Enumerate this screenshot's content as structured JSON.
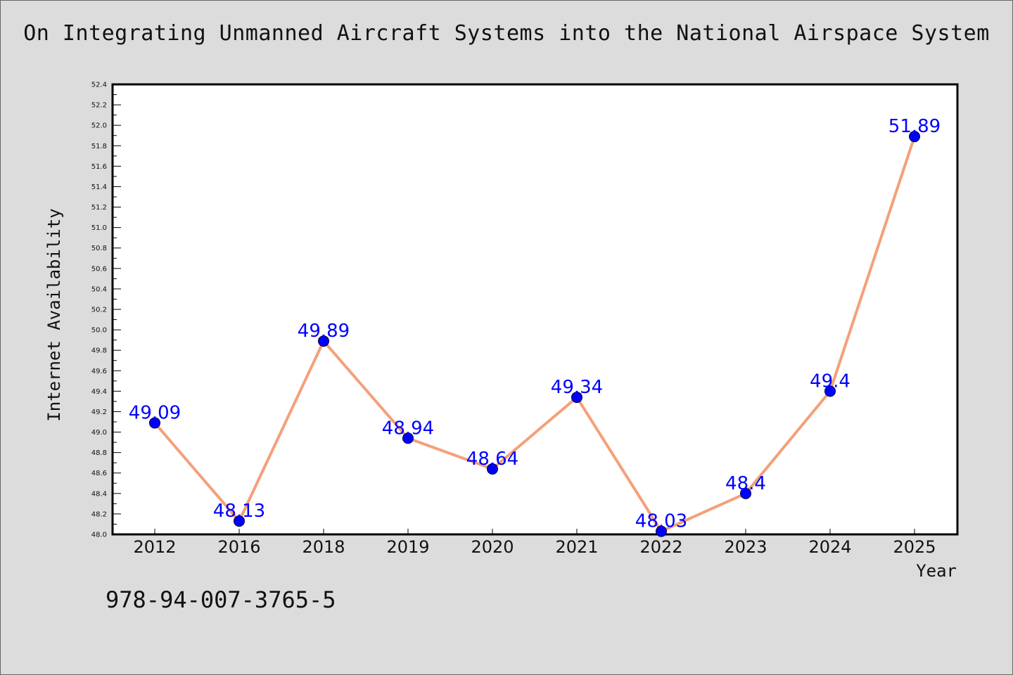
{
  "title": "On Integrating Unmanned Aircraft Systems into the National Airspace System",
  "footer_text": "978-94-007-3765-5",
  "colors": {
    "background": "#dcdcdc",
    "plot_background": "#ffffff",
    "line": "#f4a07a",
    "marker": "#0000ff",
    "data_label": "#0000ff"
  },
  "chart_data": {
    "type": "line",
    "title": "On Integrating Unmanned Aircraft Systems into the National Airspace System",
    "xlabel": "Year",
    "ylabel": "Internet Availability",
    "categories": [
      "2012",
      "2016",
      "2018",
      "2019",
      "2020",
      "2021",
      "2022",
      "2023",
      "2024",
      "2025"
    ],
    "values": [
      49.09,
      48.13,
      49.89,
      48.94,
      48.64,
      49.34,
      48.03,
      48.4,
      49.4,
      51.89
    ],
    "data_labels": [
      "49.09",
      "48.13",
      "49.89",
      "48.94",
      "48.64",
      "49.34",
      "48.03",
      "48.4",
      "49.4",
      "51.89"
    ],
    "ylim": [
      48.0,
      52.4
    ],
    "yticks": [
      "48.0",
      "48.2",
      "48.4",
      "48.6",
      "48.8",
      "49.0",
      "49.2",
      "49.4",
      "49.6",
      "49.8",
      "50.0",
      "50.2",
      "50.4",
      "50.6",
      "50.8",
      "51.0",
      "51.2",
      "51.4",
      "51.6",
      "51.8",
      "52.0",
      "52.2",
      "52.4"
    ],
    "grid": false,
    "legend": "none"
  }
}
